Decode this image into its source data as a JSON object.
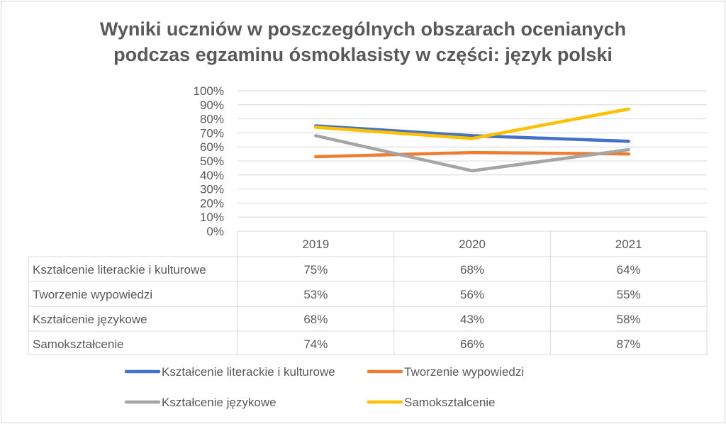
{
  "chart_data": {
    "type": "line",
    "title_lines": [
      "Wyniki uczniów w poszczególnych obszarach ocenianych",
      "podczas egzaminu ósmoklasisty w części: język polski"
    ],
    "categories": [
      "2019",
      "2020",
      "2021"
    ],
    "ylim": [
      0,
      100
    ],
    "yticks": [
      "0%",
      "10%",
      "20%",
      "30%",
      "40%",
      "50%",
      "60%",
      "70%",
      "80%",
      "90%",
      "100%"
    ],
    "grid": true,
    "data_table": true,
    "legend_position": "bottom",
    "series": [
      {
        "name": "Kształcenie literackie i kulturowe",
        "values": [
          75,
          68,
          64
        ],
        "labels": [
          "75%",
          "68%",
          "64%"
        ],
        "color": "#4472C4"
      },
      {
        "name": "Tworzenie wypowiedzi",
        "values": [
          53,
          56,
          55
        ],
        "labels": [
          "53%",
          "56%",
          "55%"
        ],
        "color": "#ED7D31"
      },
      {
        "name": "Kształcenie językowe",
        "values": [
          68,
          43,
          58
        ],
        "labels": [
          "68%",
          "43%",
          "58%"
        ],
        "color": "#A5A5A5"
      },
      {
        "name": "Samokształcenie",
        "values": [
          74,
          66,
          87
        ],
        "labels": [
          "74%",
          "66%",
          "87%"
        ],
        "color": "#FFC000"
      }
    ]
  }
}
